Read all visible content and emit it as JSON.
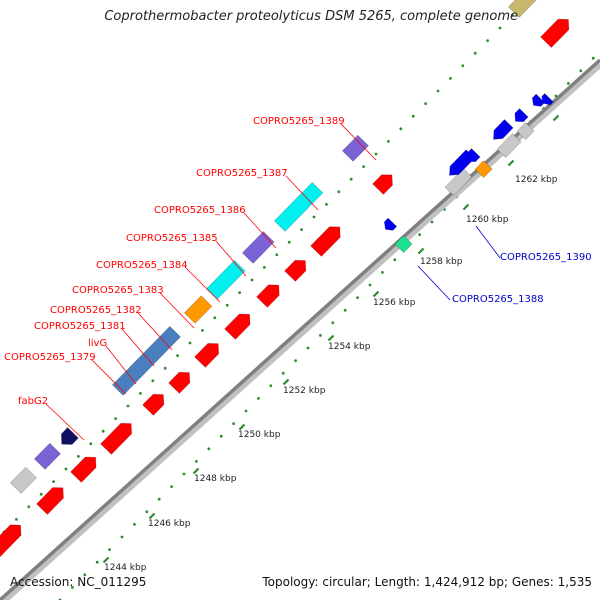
{
  "title": "Coprothermobacter proteolyticus DSM 5265, complete genome",
  "footer": {
    "accession": "Accession: NC_011295",
    "summary": "Topology: circular; Length: 1,424,912 bp; Genes: 1,535"
  },
  "colors": {
    "background": "#ffffff",
    "backbone": "#808080",
    "backbone_shadow": "#c0c0c0",
    "tick_dots": "#2e8b2e",
    "tick_major": "#2e8b2e",
    "gene_red": "#ff0000",
    "gene_blue": "#0000ee",
    "gene_steelblue": "#4a7fbf",
    "gene_cyan": "#00f0f0",
    "gene_slateblue": "#7b62d6",
    "gene_orange": "#ff9900",
    "gene_gray": "#c8c8c8",
    "gene_olive": "#c8b86e",
    "gene_aquamarine": "#1fe08f",
    "gene_navy": "#101060",
    "label_red": "#ff0000",
    "label_blue": "#0000cc"
  },
  "scale_labels": [
    "1244 kbp",
    "1246 kbp",
    "1248 kbp",
    "1250 kbp",
    "1252 kbp",
    "1254 kbp",
    "1256 kbp",
    "1258 kbp",
    "1260 kbp",
    "1262 kbp"
  ],
  "gene_labels_upper": [
    "COPRO5265_1389",
    "COPRO5265_1387",
    "COPRO5265_1386",
    "COPRO5265_1385",
    "COPRO5265_1384",
    "COPRO5265_1383",
    "COPRO5265_1382",
    "COPRO5265_1381",
    "livG",
    "COPRO5265_1379",
    "fabG2"
  ],
  "gene_labels_lower": [
    "COPRO5265_1390",
    "COPRO5265_1388"
  ]
}
